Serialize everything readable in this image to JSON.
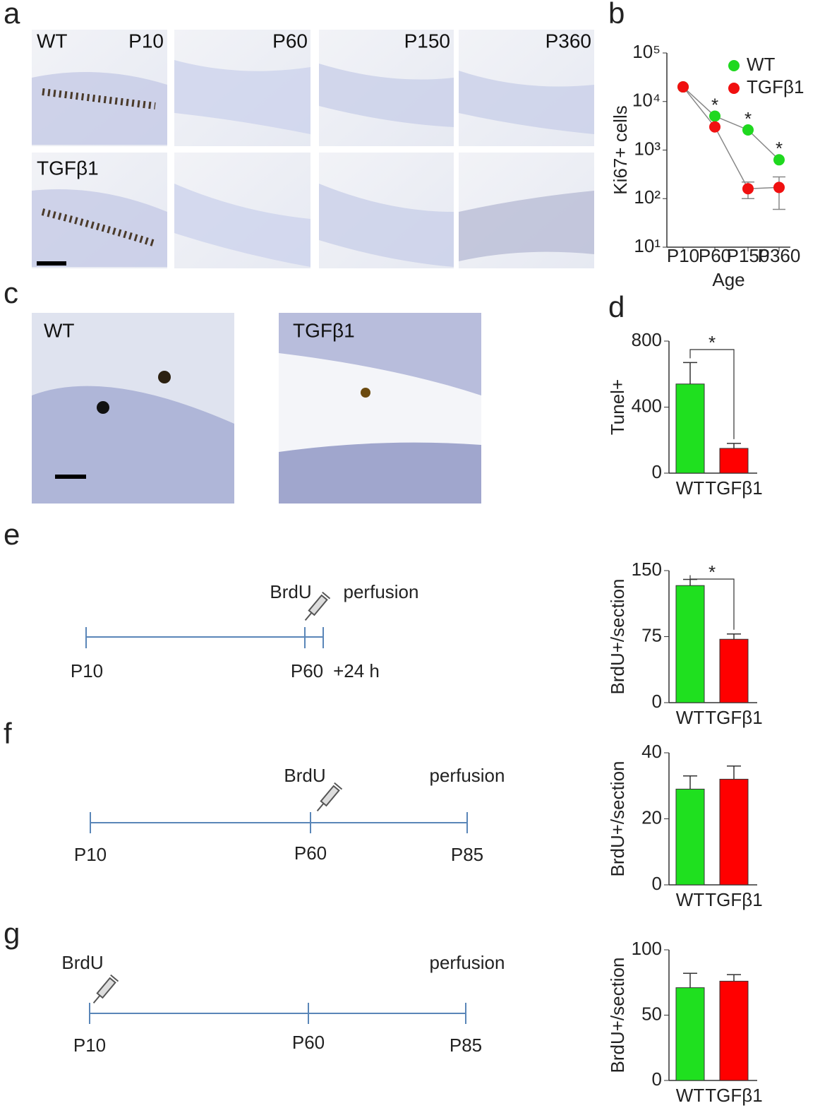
{
  "figure": {
    "panel_letters": [
      "a",
      "b",
      "c",
      "d",
      "e",
      "f",
      "g"
    ],
    "panel_a": {
      "row_labels": [
        "WT",
        "TGFβ1"
      ],
      "ages": [
        "P10",
        "P60",
        "P150",
        "P360"
      ]
    },
    "panel_c": {
      "labels": [
        "WT",
        "TGFβ1"
      ]
    },
    "timeline_e": {
      "above": [
        "BrdU",
        "perfusion"
      ],
      "below": [
        "P10",
        "P60",
        "+24 h"
      ]
    },
    "timeline_f": {
      "above": [
        "BrdU",
        "perfusion"
      ],
      "below": [
        "P10",
        "P60",
        "P85"
      ]
    },
    "timeline_g": {
      "above": [
        "BrdU",
        "perfusion"
      ],
      "below": [
        "P10",
        "P60",
        "P85"
      ]
    }
  },
  "chart_data": [
    {
      "type": "line",
      "log_y": true,
      "xlabel": "Age",
      "ylabel": "Ki67+ cells",
      "categories": [
        "P10",
        "P60",
        "P150",
        "P360"
      ],
      "series": [
        {
          "name": "WT",
          "color": "#1fd81f",
          "values": [
            20000,
            5000,
            2600,
            630
          ],
          "errors": [
            null,
            null,
            null,
            null
          ]
        },
        {
          "name": "TGFβ1",
          "color": "#f01010",
          "values": [
            20000,
            3000,
            160,
            170
          ],
          "errors": [
            null,
            null,
            60,
            110
          ]
        }
      ],
      "annotations": [
        null,
        "*",
        "*",
        "*"
      ],
      "ylim": [
        10,
        100000
      ],
      "yticks": [
        {
          "value": 10,
          "label": "10¹"
        },
        {
          "value": 100,
          "label": "10²"
        },
        {
          "value": 1000,
          "label": "10³"
        },
        {
          "value": 10000,
          "label": "10⁴"
        },
        {
          "value": 100000,
          "label": "10⁵"
        }
      ],
      "legend": "upper right"
    },
    {
      "type": "bar",
      "ylabel": "Tunel+",
      "categories": [
        "WT",
        "TGFβ1"
      ],
      "values": [
        540,
        150
      ],
      "errors": [
        130,
        30
      ],
      "colors": [
        "#1fe01f",
        "#ff0000"
      ],
      "ylim": [
        0,
        800
      ],
      "yticks": [
        0,
        400,
        800
      ],
      "annotation": "*"
    },
    {
      "type": "bar",
      "ylabel": "BrdU+/section",
      "categories": [
        "WT",
        "TGFβ1"
      ],
      "values": [
        133,
        72
      ],
      "errors": [
        7,
        6
      ],
      "colors": [
        "#1fe01f",
        "#ff0000"
      ],
      "ylim": [
        0,
        150
      ],
      "yticks": [
        0,
        75,
        150
      ],
      "annotation": "*"
    },
    {
      "type": "bar",
      "ylabel": "BrdU+/section",
      "categories": [
        "WT",
        "TGFβ1"
      ],
      "values": [
        29,
        32
      ],
      "errors": [
        4,
        4
      ],
      "colors": [
        "#1fe01f",
        "#ff0000"
      ],
      "ylim": [
        0,
        40
      ],
      "yticks": [
        0,
        20,
        40
      ]
    },
    {
      "type": "bar",
      "ylabel": "BrdU+/section",
      "categories": [
        "WT",
        "TGFβ1"
      ],
      "values": [
        71,
        76
      ],
      "errors": [
        11,
        5
      ],
      "colors": [
        "#1fe01f",
        "#ff0000"
      ],
      "ylim": [
        0,
        100
      ],
      "yticks": [
        0,
        50,
        100
      ]
    }
  ]
}
